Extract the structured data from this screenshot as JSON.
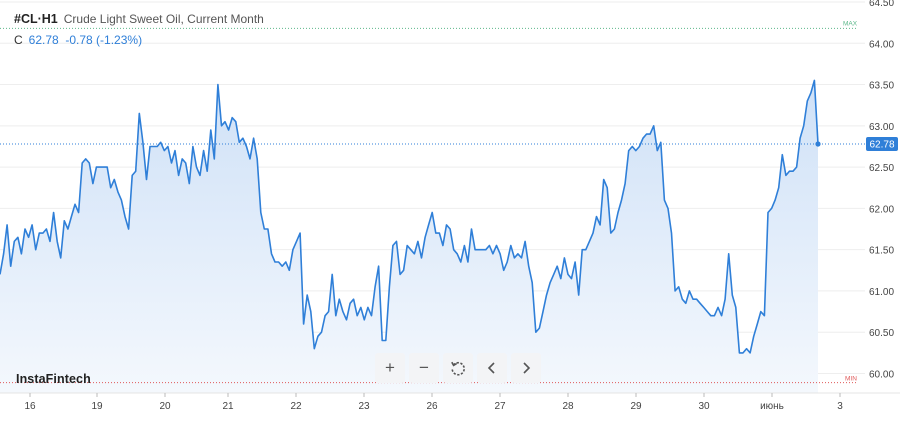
{
  "header": {
    "symbol": "#CL·H1",
    "description": "Crude Light Sweet Oil, Current Month",
    "close_label": "C",
    "close_value": "62.78",
    "change": "-0.78 (-1.23%)"
  },
  "brand": "InstaFintech",
  "toolbar": {
    "buttons": [
      {
        "name": "zoom-in-button",
        "icon": "plus-icon",
        "glyph": "+"
      },
      {
        "name": "zoom-out-button",
        "icon": "minus-icon",
        "glyph": "−"
      },
      {
        "name": "reset-button",
        "icon": "reset-icon",
        "glyph": ""
      },
      {
        "name": "scroll-left-button",
        "icon": "chevron-left-icon",
        "glyph": ""
      },
      {
        "name": "scroll-right-button",
        "icon": "chevron-right-icon",
        "glyph": ""
      }
    ]
  },
  "colors": {
    "line": "#2f7fd8",
    "fill_top": "#cfe1f7",
    "fill_bottom": "#f4f8fd",
    "max_line": "#5cb88a",
    "min_line": "#e05a5a",
    "last_price_bg": "#2f7fd8",
    "grid": "#eeeeee"
  },
  "chart_data": {
    "type": "area",
    "title": "Crude Light Sweet Oil, Current Month",
    "ylim": [
      59.8,
      64.5
    ],
    "y_ticks": [
      "64.50",
      "64.00",
      "63.50",
      "63.00",
      "62.50",
      "62.00",
      "61.50",
      "61.00",
      "60.50",
      "60.00"
    ],
    "x_ticks": [
      "16",
      "19",
      "20",
      "21",
      "22",
      "23",
      "26",
      "27",
      "28",
      "29",
      "30",
      "июнь",
      "3"
    ],
    "max_label": "MAX",
    "min_label": "MIN",
    "max_value": 64.18,
    "min_value": 59.89,
    "last_price": 62.78,
    "last_price_label": "62.78",
    "grid": true,
    "series": [
      {
        "values": [
          61.2,
          61.45,
          61.8,
          61.3,
          61.6,
          61.65,
          61.45,
          61.75,
          61.65,
          61.8,
          61.5,
          61.7,
          61.7,
          61.75,
          61.6,
          61.95,
          61.6,
          61.4,
          61.85,
          61.75,
          61.9,
          62.05,
          61.95,
          62.55,
          62.6,
          62.55,
          62.3,
          62.5,
          62.5,
          62.5,
          62.5,
          62.25,
          62.35,
          62.2,
          62.1,
          61.9,
          61.75,
          62.4,
          62.45,
          63.15,
          62.8,
          62.35,
          62.75,
          62.75,
          62.75,
          62.8,
          62.7,
          62.75,
          62.55,
          62.7,
          62.4,
          62.6,
          62.55,
          62.3,
          62.75,
          62.5,
          62.4,
          62.7,
          62.45,
          62.95,
          62.6,
          63.5,
          63.0,
          63.05,
          62.95,
          63.1,
          63.05,
          62.8,
          62.85,
          62.75,
          62.6,
          62.85,
          62.6,
          61.95,
          61.75,
          61.75,
          61.45,
          61.35,
          61.35,
          61.3,
          61.35,
          61.25,
          61.5,
          61.6,
          61.7,
          60.6,
          60.95,
          60.75,
          60.3,
          60.45,
          60.5,
          60.7,
          60.75,
          61.2,
          60.7,
          60.9,
          60.75,
          60.65,
          60.85,
          60.9,
          60.7,
          60.8,
          60.65,
          60.8,
          60.7,
          61.05,
          61.3,
          60.4,
          60.4,
          61.05,
          61.55,
          61.6,
          61.2,
          61.25,
          61.55,
          61.5,
          61.45,
          61.6,
          61.4,
          61.65,
          61.8,
          61.95,
          61.7,
          61.7,
          61.55,
          61.8,
          61.75,
          61.5,
          61.45,
          61.35,
          61.55,
          61.35,
          61.75,
          61.5,
          61.5,
          61.5,
          61.5,
          61.55,
          61.45,
          61.55,
          61.45,
          61.25,
          61.35,
          61.55,
          61.4,
          61.45,
          61.4,
          61.6,
          61.3,
          61.1,
          60.5,
          60.55,
          60.75,
          60.95,
          61.1,
          61.2,
          61.3,
          61.15,
          61.4,
          61.2,
          61.15,
          61.35,
          60.95,
          61.5,
          61.5,
          61.6,
          61.7,
          61.9,
          61.8,
          62.35,
          62.25,
          61.7,
          61.75,
          61.95,
          62.1,
          62.3,
          62.7,
          62.75,
          62.7,
          62.75,
          62.85,
          62.9,
          62.9,
          63.0,
          62.7,
          62.8,
          62.1,
          62.0,
          61.7,
          61.0,
          61.05,
          60.9,
          60.85,
          61.0,
          60.9,
          60.9,
          60.85,
          60.8,
          60.75,
          60.7,
          60.7,
          60.8,
          60.7,
          60.9,
          61.45,
          60.95,
          60.8,
          60.25,
          60.25,
          60.3,
          60.25,
          60.45,
          60.6,
          60.75,
          60.7,
          61.95,
          62.0,
          62.1,
          62.25,
          62.65,
          62.4,
          62.45,
          62.45,
          62.5,
          62.85,
          63.0,
          63.3,
          63.4,
          63.55,
          62.78
        ]
      }
    ]
  }
}
